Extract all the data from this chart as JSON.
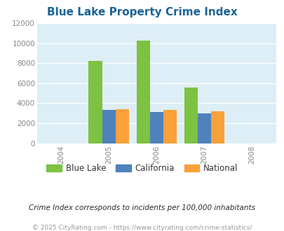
{
  "title": "Blue Lake Property Crime Index",
  "years": [
    2004,
    2005,
    2006,
    2007,
    2008
  ],
  "bar_years": [
    2005,
    2006,
    2007
  ],
  "blue_lake": [
    8200,
    10250,
    5600
  ],
  "california": [
    3300,
    3150,
    3000
  ],
  "national": [
    3400,
    3300,
    3200
  ],
  "colors": {
    "blue_lake": "#7dc241",
    "california": "#4f81bd",
    "national": "#f9a13a"
  },
  "xlim": [
    2003.5,
    2008.5
  ],
  "ylim": [
    0,
    12000
  ],
  "yticks": [
    0,
    2000,
    4000,
    6000,
    8000,
    10000,
    12000
  ],
  "title_color": "#1a6496",
  "background_color": "#ddeef6",
  "legend_labels": [
    "Blue Lake",
    "California",
    "National"
  ],
  "footnote1": "Crime Index corresponds to incidents per 100,000 inhabitants",
  "footnote2": "© 2025 CityRating.com - https://www.cityrating.com/crime-statistics/",
  "footnote1_color": "#2a2a2a",
  "footnote2_color": "#999999",
  "bar_width": 0.28
}
